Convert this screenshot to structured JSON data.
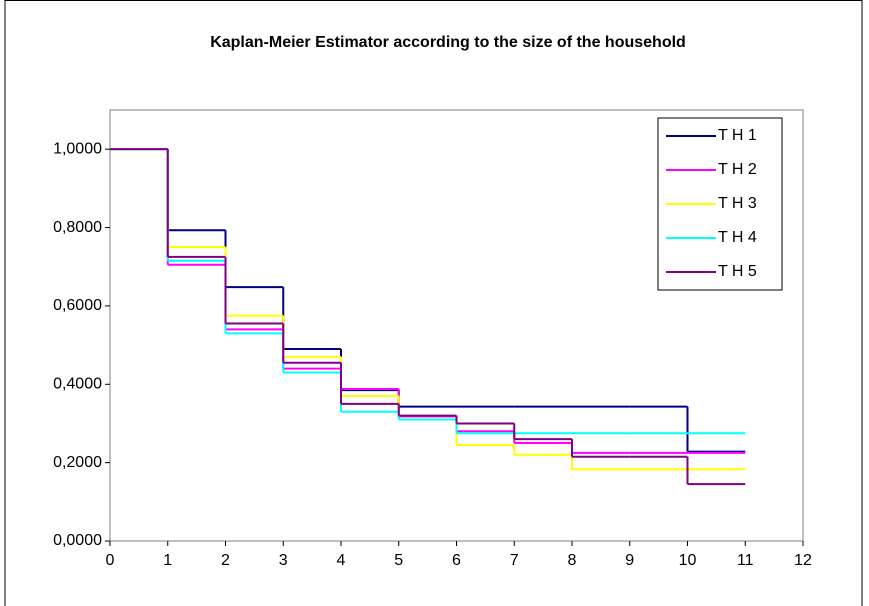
{
  "chart_data": {
    "type": "step",
    "title": "Kaplan-Meier Estimator according to the size of the household",
    "x": [
      0,
      1,
      2,
      3,
      4,
      5,
      6,
      7,
      8,
      9,
      10,
      11
    ],
    "series": [
      {
        "name": "T H 1",
        "color": "#000080",
        "values": [
          1.0,
          0.793,
          0.648,
          0.49,
          0.385,
          0.343,
          0.343,
          0.343,
          0.343,
          0.343,
          0.228,
          0.228
        ]
      },
      {
        "name": "T H 2",
        "color": "#ff00ff",
        "values": [
          1.0,
          0.705,
          0.54,
          0.44,
          0.388,
          0.318,
          0.28,
          0.25,
          0.225,
          0.225,
          0.225,
          0.225
        ]
      },
      {
        "name": "T H 3",
        "color": "#ffff00",
        "values": [
          1.0,
          0.75,
          0.575,
          0.47,
          0.37,
          0.31,
          0.245,
          0.22,
          0.183,
          0.183,
          0.183,
          0.183
        ]
      },
      {
        "name": "T H 4",
        "color": "#00ffff",
        "values": [
          1.0,
          0.715,
          0.53,
          0.43,
          0.33,
          0.31,
          0.275,
          0.275,
          0.275,
          0.275,
          0.275,
          0.275
        ]
      },
      {
        "name": "T H 5",
        "color": "#800080",
        "values": [
          1.0,
          0.725,
          0.555,
          0.455,
          0.35,
          0.32,
          0.3,
          0.26,
          0.215,
          0.215,
          0.145,
          0.145
        ]
      }
    ],
    "xlim": [
      0,
      12
    ],
    "xticks": [
      0,
      1,
      2,
      3,
      4,
      5,
      6,
      7,
      8,
      9,
      10,
      11,
      12
    ],
    "ylim": [
      0,
      1.1
    ],
    "yticks": [
      {
        "value": 0,
        "label": "0,0000"
      },
      {
        "value": 0.2,
        "label": "0,2000"
      },
      {
        "value": 0.4,
        "label": "0,4000"
      },
      {
        "value": 0.6,
        "label": "0,6000"
      },
      {
        "value": 0.8,
        "label": "0,8000"
      },
      {
        "value": 1.0,
        "label": "1,0000"
      }
    ],
    "grid": false,
    "legend": "upper right"
  }
}
